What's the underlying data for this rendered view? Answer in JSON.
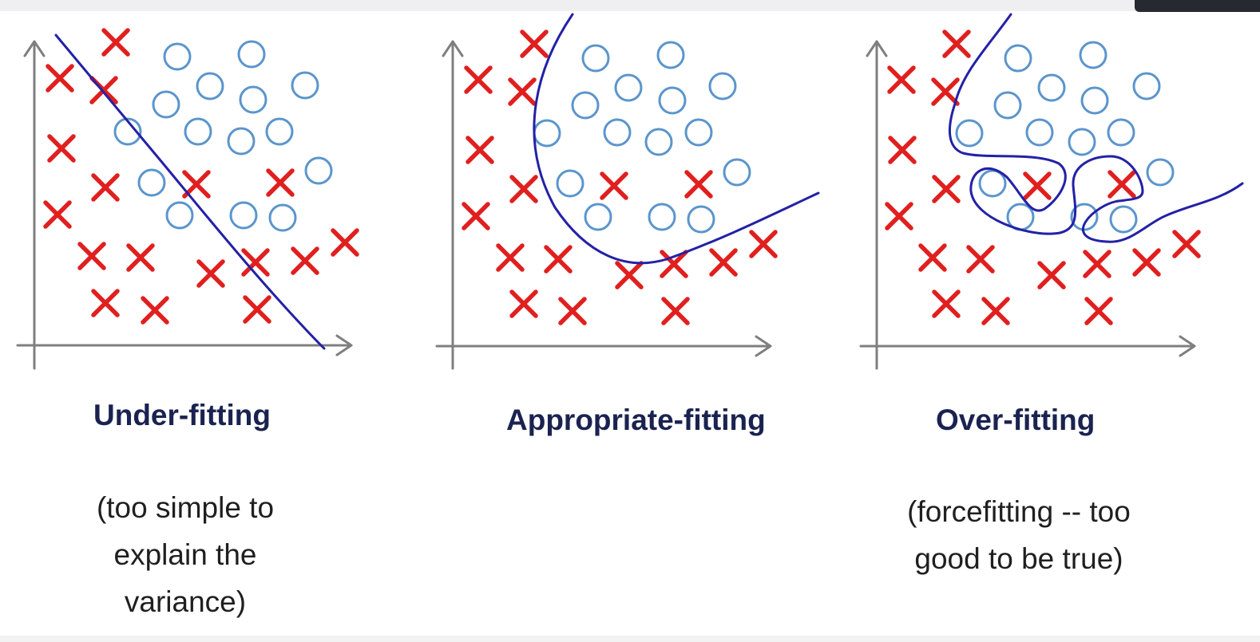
{
  "panels": [
    {
      "id": "under",
      "title": "Under-fitting",
      "caption_lines": [
        "(too simple to",
        "explain the",
        "variance)"
      ],
      "boundary_shape": "straight-line"
    },
    {
      "id": "appropriate",
      "title": "Appropriate-fitting",
      "caption_lines": [],
      "boundary_shape": "smooth-curve"
    },
    {
      "id": "over",
      "title": "Over-fitting",
      "caption_lines": [
        "(forcefitting -- too",
        "good to be true)"
      ],
      "boundary_shape": "wiggly-curve"
    }
  ],
  "legend_marks": {
    "cross_class_color": "#e0201f",
    "circle_class_color": "#5b95cc",
    "boundary_color": "#2321a6",
    "axis_color": "#7f7f7f"
  }
}
